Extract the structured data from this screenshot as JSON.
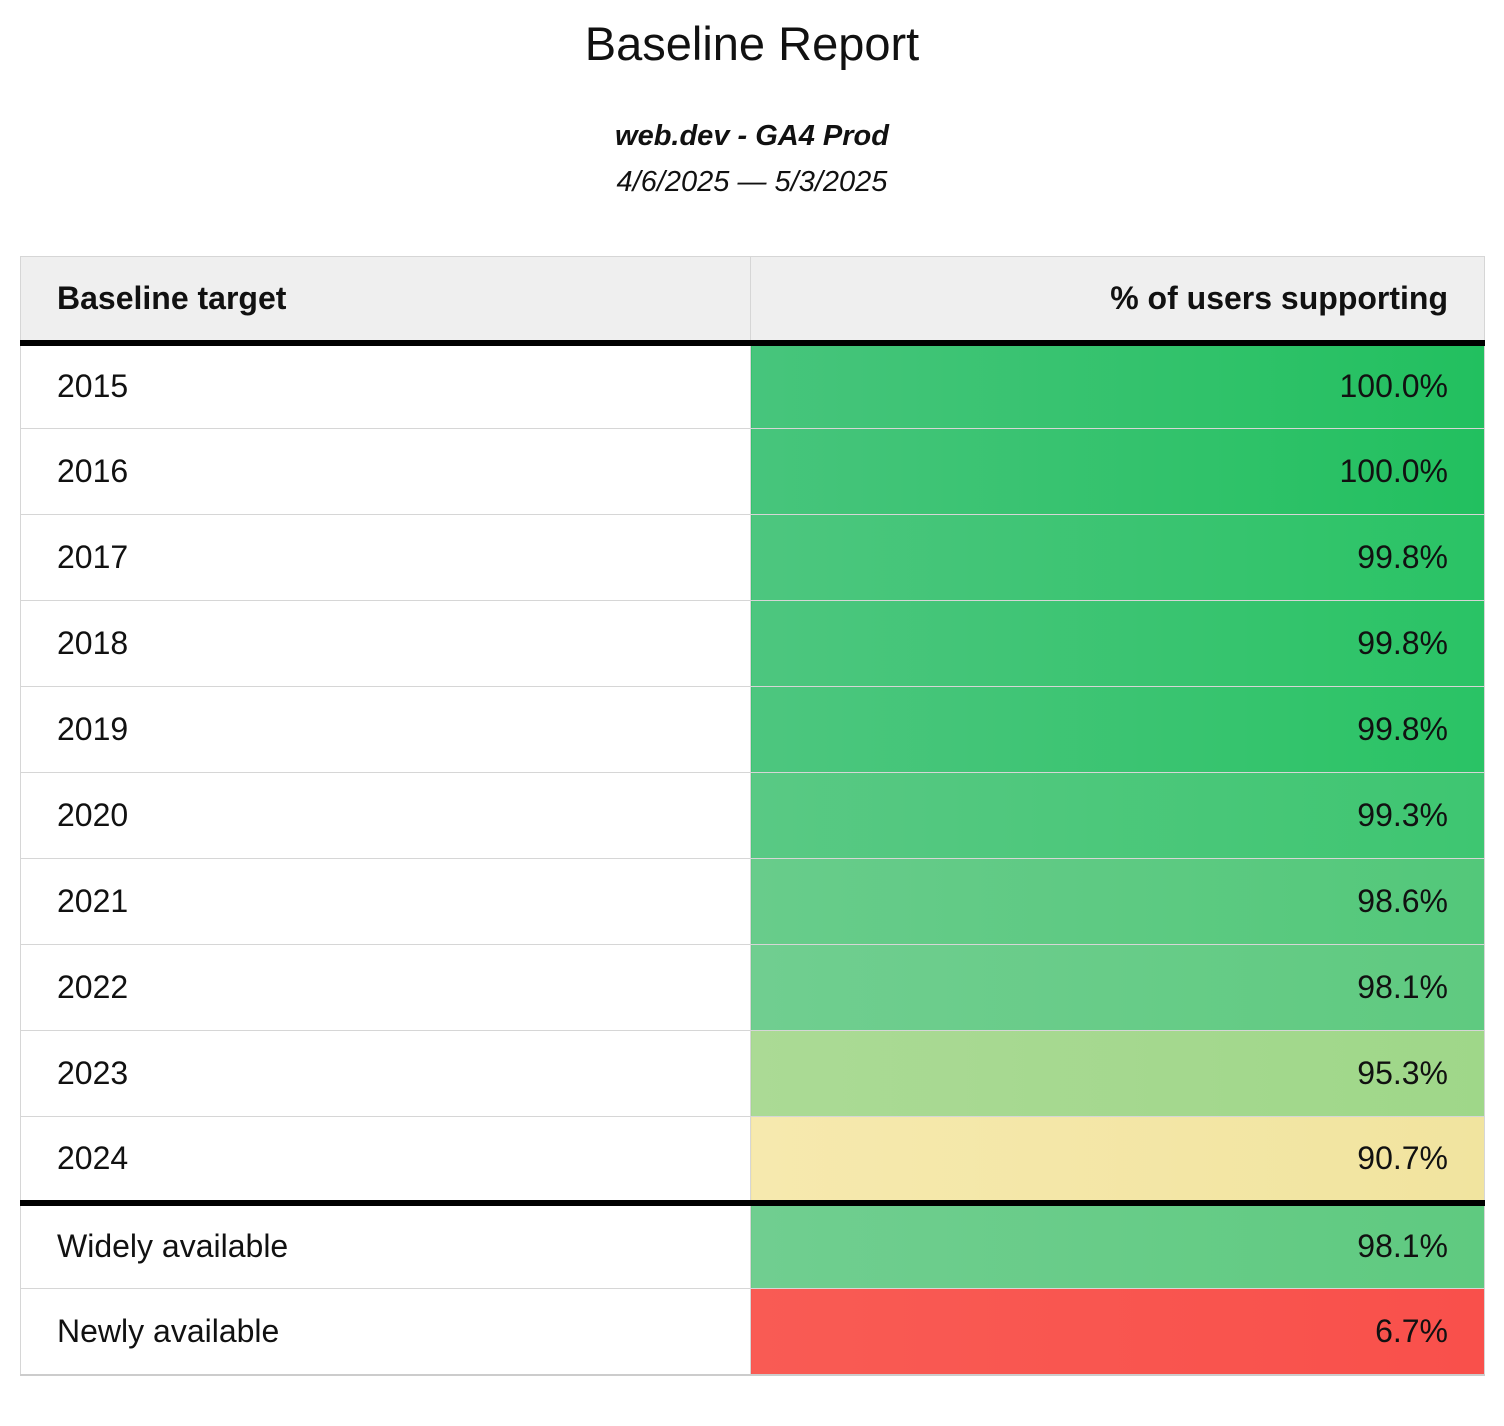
{
  "page": {
    "title": "Baseline Report",
    "subtitle": "web.dev - GA4 Prod",
    "date_range": "4/6/2025 — 5/3/2025"
  },
  "table": {
    "columns": [
      {
        "label": "Baseline target"
      },
      {
        "label": "% of users supporting"
      }
    ],
    "header_background": "#efefef",
    "status_scale_note_colors": {
      "high_green": "#22c05f",
      "mid_green": "#5fca80",
      "light_green": "#9fd789",
      "warning_yellow": "#f1e49f",
      "alert_red": "#f9504b"
    },
    "rows": [
      {
        "label": "2015",
        "value": "100.0%",
        "group": "year",
        "color_left": "#47c57c",
        "color": "#22c05f"
      },
      {
        "label": "2016",
        "value": "100.0%",
        "group": "year",
        "color_left": "#47c57c",
        "color": "#22c05f"
      },
      {
        "label": "2017",
        "value": "99.8%",
        "group": "year",
        "color_left": "#4dc67f",
        "color": "#2ac365"
      },
      {
        "label": "2018",
        "value": "99.8%",
        "group": "year",
        "color_left": "#4dc67f",
        "color": "#2ac365"
      },
      {
        "label": "2019",
        "value": "99.8%",
        "group": "year",
        "color_left": "#4dc67f",
        "color": "#2ac365"
      },
      {
        "label": "2020",
        "value": "99.3%",
        "group": "year",
        "color_left": "#59c984",
        "color": "#3ec671"
      },
      {
        "label": "2021",
        "value": "98.6%",
        "group": "year",
        "color_left": "#68cc8b",
        "color": "#53c87a"
      },
      {
        "label": "2022",
        "value": "98.1%",
        "group": "year",
        "color_left": "#70ce90",
        "color": "#5fca80"
      },
      {
        "label": "2023",
        "value": "95.3%",
        "group": "year",
        "color_left": "#abda95",
        "color": "#9fd789"
      },
      {
        "label": "2024",
        "value": "90.7%",
        "group": "year",
        "color_left": "#f6e9ae",
        "color": "#f1e49f"
      },
      {
        "label": "Widely available",
        "value": "98.1%",
        "group": "summary",
        "thick_border_above": true,
        "color_left": "#70ce90",
        "color": "#5fca80"
      },
      {
        "label": "Newly available",
        "value": "6.7%",
        "group": "summary",
        "color_left": "#f95b54",
        "color": "#f9504b"
      }
    ]
  }
}
